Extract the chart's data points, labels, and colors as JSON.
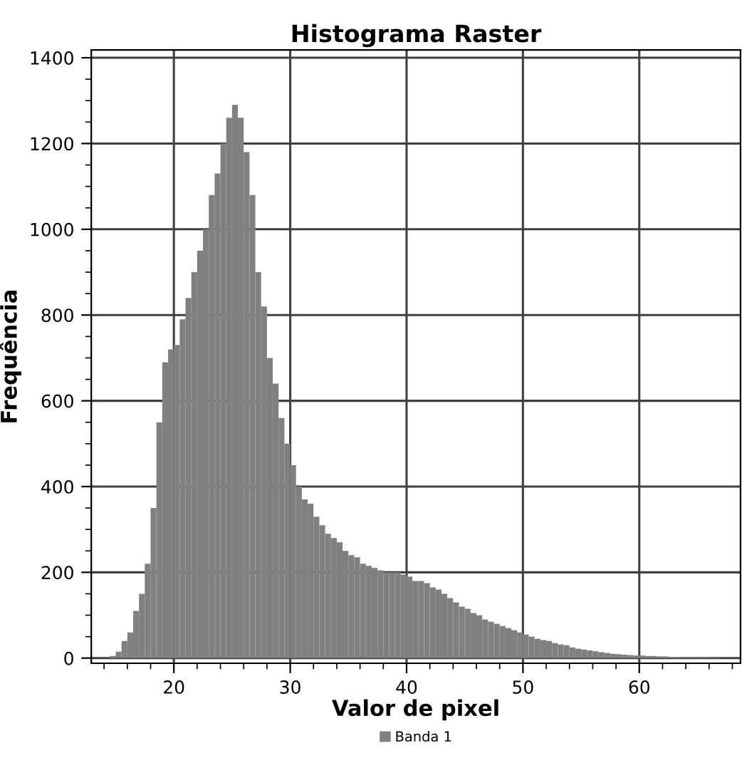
{
  "chart_data": {
    "type": "histogram",
    "title": "Histograma Raster",
    "xlabel": "Valor de pixel",
    "ylabel": "Frequência",
    "bins": [
      14.5,
      15,
      15.5,
      16,
      16.5,
      17,
      17.5,
      18,
      18.5,
      19,
      19.5,
      20,
      20.5,
      21,
      21.5,
      22,
      22.5,
      23,
      23.5,
      24,
      24.5,
      25,
      25.5,
      26,
      26.5,
      27,
      27.5,
      28,
      28.5,
      29,
      29.5,
      30,
      30.5,
      31,
      31.5,
      32,
      32.5,
      33,
      33.5,
      34,
      34.5,
      35,
      35.5,
      36,
      36.5,
      37,
      37.5,
      38,
      38.5,
      39,
      39.5,
      40,
      40.5,
      41,
      41.5,
      42,
      42.5,
      43,
      43.5,
      44,
      44.5,
      45,
      45.5,
      46,
      46.5,
      47,
      47.5,
      48,
      48.5,
      49,
      49.5,
      50,
      50.5,
      51,
      51.5,
      52,
      52.5,
      53,
      53.5,
      54,
      54.5,
      55,
      55.5,
      56,
      56.5,
      57,
      57.5,
      58,
      58.5,
      59,
      59.5,
      60,
      60.5,
      61,
      61.5,
      62,
      62.5,
      63,
      63.5,
      64,
      64.5,
      65,
      65.5,
      66,
      66.5,
      67
    ],
    "series": [
      {
        "name": "Banda 1",
        "color": "#808080",
        "values": [
          5,
          15,
          40,
          60,
          110,
          150,
          220,
          350,
          550,
          690,
          720,
          730,
          790,
          840,
          900,
          950,
          1000,
          1080,
          1130,
          1200,
          1260,
          1290,
          1260,
          1180,
          1080,
          900,
          820,
          700,
          640,
          560,
          500,
          450,
          400,
          370,
          360,
          330,
          310,
          290,
          280,
          270,
          250,
          240,
          235,
          220,
          215,
          210,
          205,
          200,
          200,
          200,
          195,
          190,
          180,
          180,
          175,
          165,
          160,
          150,
          140,
          130,
          120,
          115,
          105,
          100,
          90,
          85,
          80,
          75,
          70,
          65,
          60,
          55,
          50,
          45,
          42,
          40,
          35,
          32,
          30,
          25,
          22,
          20,
          18,
          16,
          14,
          12,
          10,
          9,
          8,
          7,
          6,
          6,
          5,
          5,
          4,
          4,
          3,
          3,
          2,
          2,
          2,
          2,
          2,
          1,
          1
        ]
      }
    ],
    "xlim": [
      12.9,
      68.7
    ],
    "ylim": [
      -12,
      1418
    ],
    "xticks": [
      {
        "value": 14,
        "label": null
      },
      {
        "value": 16,
        "label": null
      },
      {
        "value": 18,
        "label": null
      },
      20,
      {
        "value": 22,
        "label": null
      },
      {
        "value": 24,
        "label": null
      },
      {
        "value": 26,
        "label": null
      },
      {
        "value": 28,
        "label": null
      },
      30,
      {
        "value": 32,
        "label": null
      },
      {
        "value": 34,
        "label": null
      },
      {
        "value": 36,
        "label": null
      },
      {
        "value": 38,
        "label": null
      },
      40,
      {
        "value": 42,
        "label": null
      },
      {
        "value": 44,
        "label": null
      },
      {
        "value": 46,
        "label": null
      },
      {
        "value": 48,
        "label": null
      },
      50,
      {
        "value": 52,
        "label": null
      },
      {
        "value": 54,
        "label": null
      },
      {
        "value": 56,
        "label": null
      },
      {
        "value": 58,
        "label": null
      },
      60,
      {
        "value": 62,
        "label": null
      },
      {
        "value": 64,
        "label": null
      },
      {
        "value": 66,
        "label": null
      },
      {
        "value": 68,
        "label": null
      }
    ],
    "yticks": [
      0,
      {
        "value": 50,
        "label": null
      },
      {
        "value": 100,
        "label": null
      },
      {
        "value": 150,
        "label": null
      },
      200,
      {
        "value": 250,
        "label": null
      },
      {
        "value": 300,
        "label": null
      },
      {
        "value": 350,
        "label": null
      },
      400,
      {
        "value": 450,
        "label": null
      },
      {
        "value": 500,
        "label": null
      },
      {
        "value": 550,
        "label": null
      },
      600,
      {
        "value": 650,
        "label": null
      },
      {
        "value": 700,
        "label": null
      },
      {
        "value": 750,
        "label": null
      },
      800,
      {
        "value": 850,
        "label": null
      },
      {
        "value": 900,
        "label": null
      },
      {
        "value": 950,
        "label": null
      },
      1000,
      {
        "value": 1050,
        "label": null
      },
      {
        "value": 1100,
        "label": null
      },
      {
        "value": 1150,
        "label": null
      },
      1200,
      {
        "value": 1250,
        "label": null
      },
      {
        "value": 1300,
        "label": null
      },
      {
        "value": 1350,
        "label": null
      },
      1400
    ],
    "grid": true,
    "legend": "bottom"
  }
}
